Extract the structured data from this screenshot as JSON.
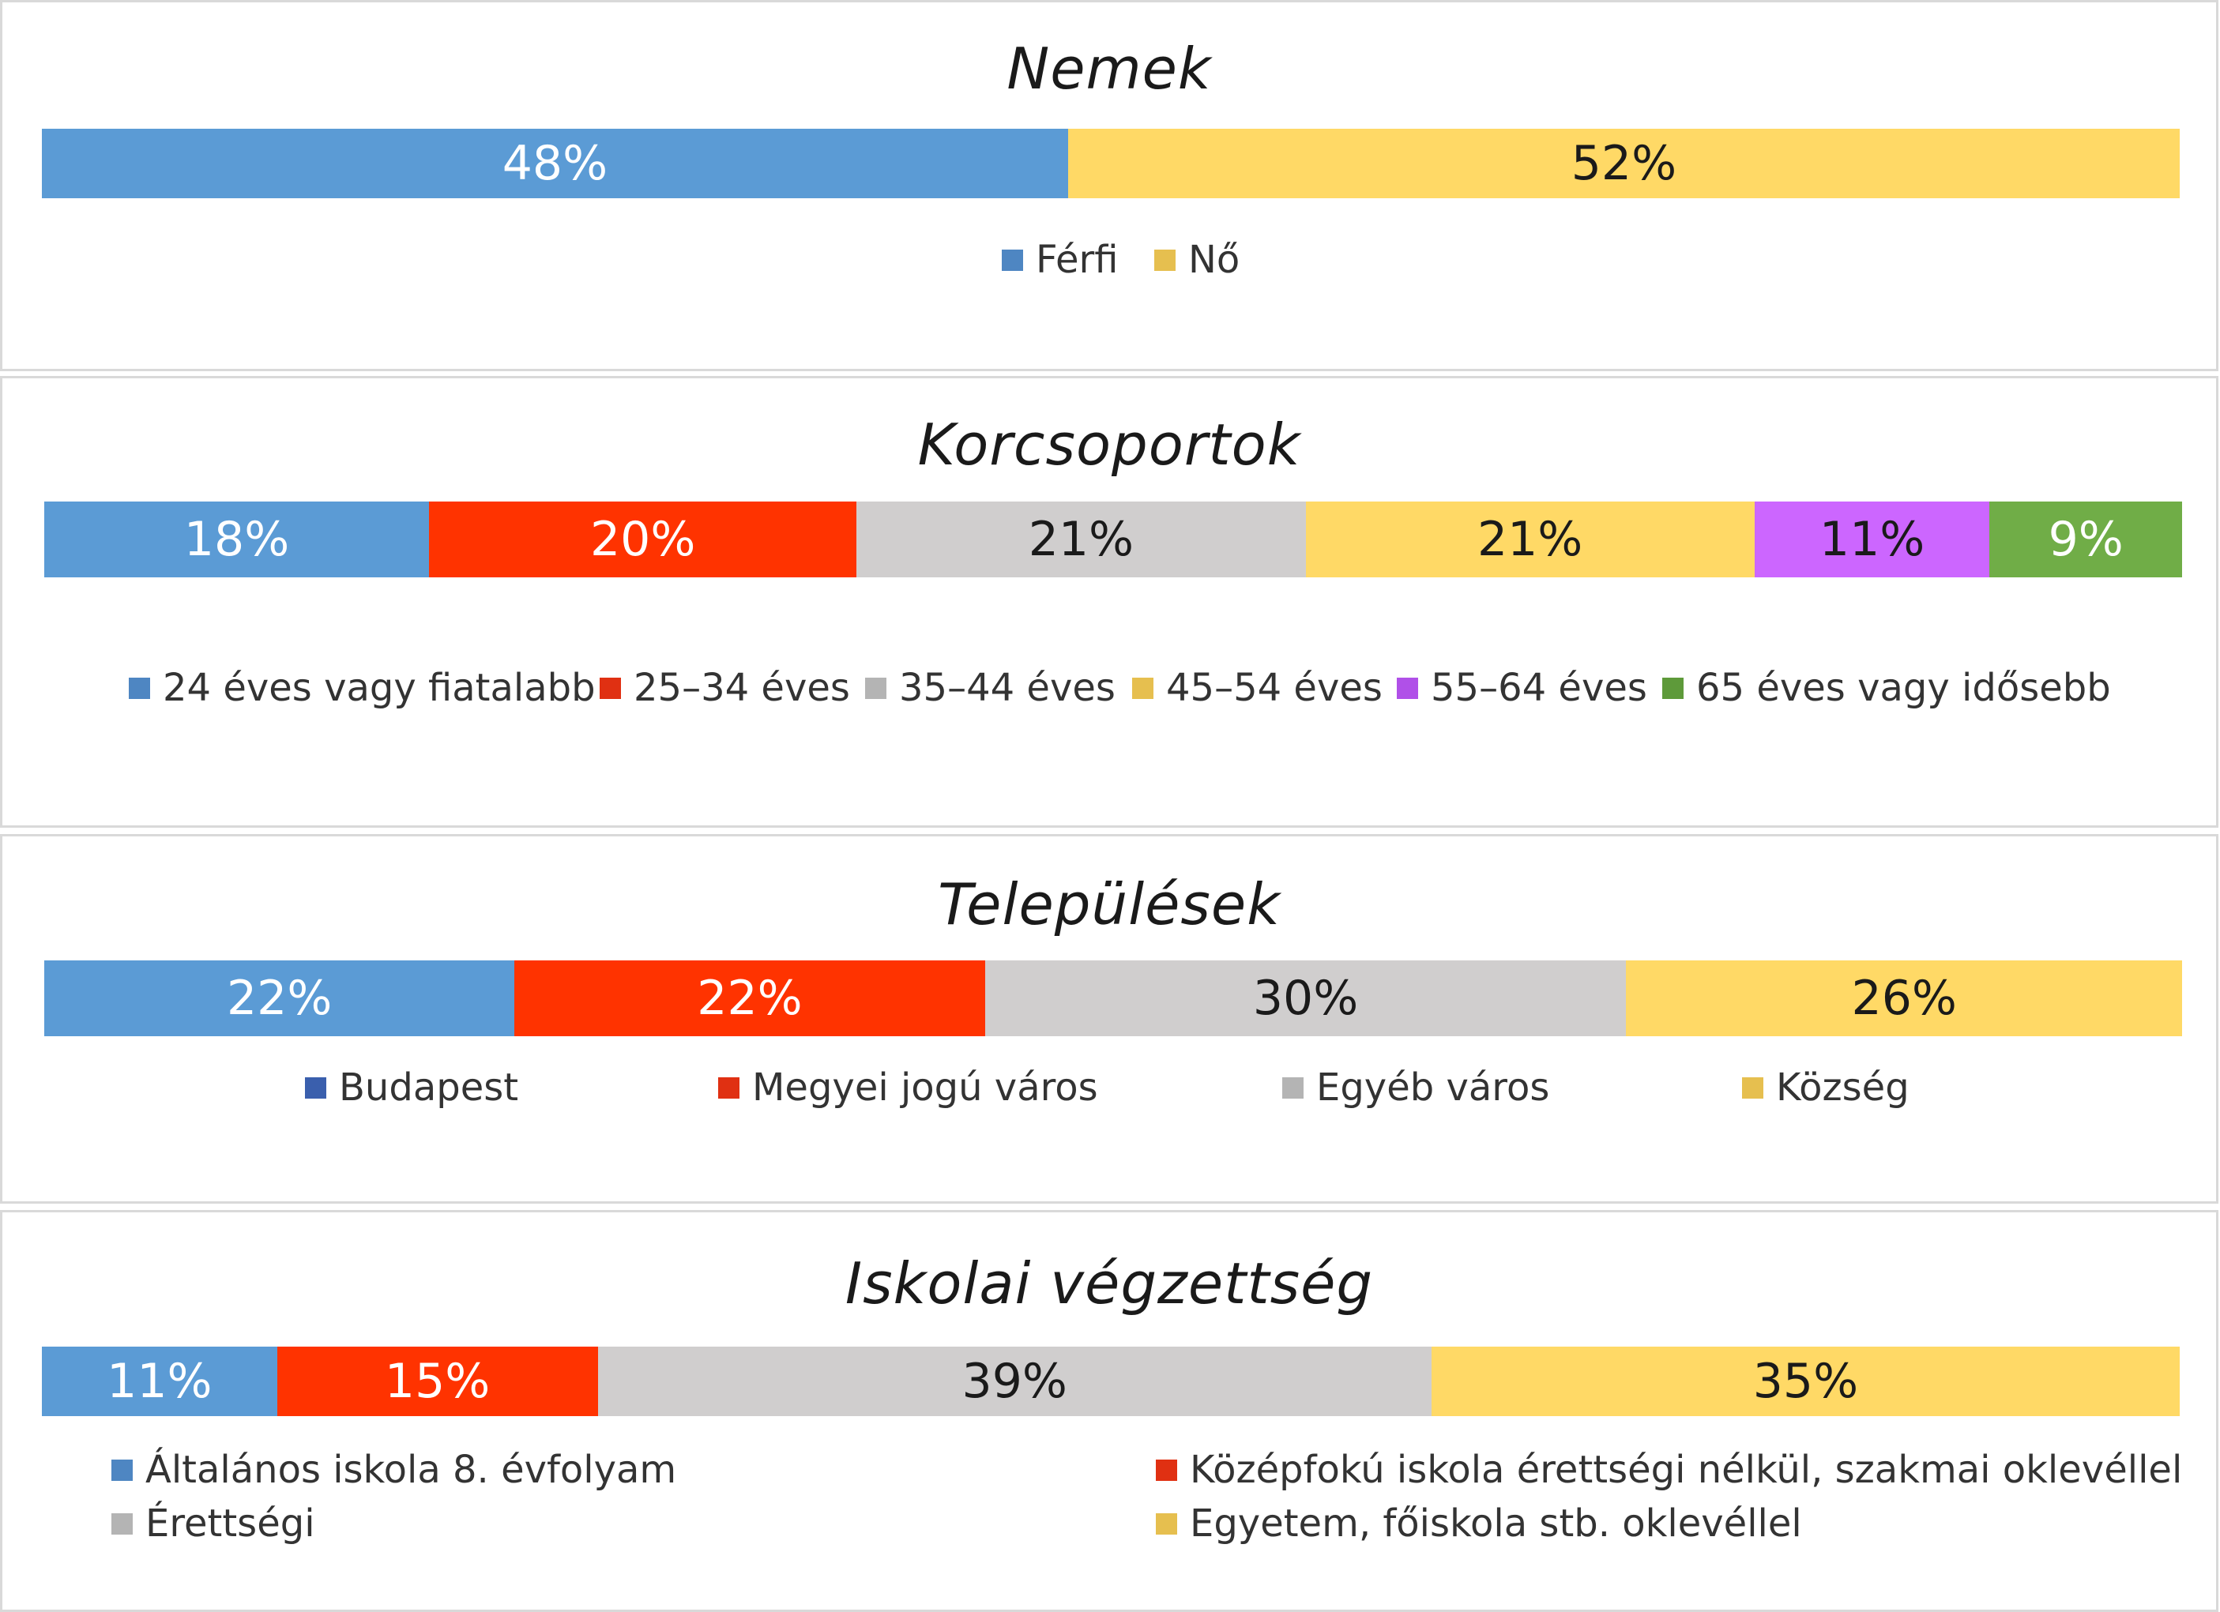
{
  "charts": [
    {
      "title": "Nemek",
      "segments": [
        {
          "label": "Férfi",
          "value": 48,
          "display": "48%",
          "color": "#5b9bd5",
          "swatch": "#4e86c2",
          "text_color": "#ffffff"
        },
        {
          "label": "Nő",
          "value": 52,
          "display": "52%",
          "color": "#ffd966",
          "swatch": "#e6bf4f",
          "text_color": "#1a1a1a"
        }
      ]
    },
    {
      "title": "Korcsoportok",
      "segments": [
        {
          "label": "24 éves vagy fiatalabb",
          "value": 18,
          "display": "18%",
          "color": "#5b9bd5",
          "swatch": "#4e86c2",
          "text_color": "#ffffff"
        },
        {
          "label": "25–34 éves",
          "value": 20,
          "display": "20%",
          "color": "#ff3300",
          "swatch": "#e03012",
          "text_color": "#ffffff"
        },
        {
          "label": "35–44 éves",
          "value": 21,
          "display": "21%",
          "color": "#d0cece",
          "swatch": "#b4b4b4",
          "text_color": "#1a1a1a"
        },
        {
          "label": "45–54 éves",
          "value": 21,
          "display": "21%",
          "color": "#ffd966",
          "swatch": "#e6bf4f",
          "text_color": "#1a1a1a"
        },
        {
          "label": "55–64 éves",
          "value": 11,
          "display": "11%",
          "color": "#cc66ff",
          "swatch": "#b050e8",
          "text_color": "#1a1a1a"
        },
        {
          "label": "65 éves vagy idősebb",
          "value": 9,
          "display": "9%",
          "color": "#70ad47",
          "swatch": "#5e9a3a",
          "text_color": "#ffffff"
        }
      ]
    },
    {
      "title": "Települések",
      "segments": [
        {
          "label": "Budapest",
          "value": 22,
          "display": "22%",
          "color": "#5b9bd5",
          "swatch": "#3a5fad",
          "text_color": "#ffffff"
        },
        {
          "label": "Megyei jogú város",
          "value": 22,
          "display": "22%",
          "color": "#ff3300",
          "swatch": "#e03012",
          "text_color": "#ffffff"
        },
        {
          "label": "Egyéb város",
          "value": 30,
          "display": "30%",
          "color": "#d0cece",
          "swatch": "#b4b4b4",
          "text_color": "#1a1a1a"
        },
        {
          "label": "Község",
          "value": 26,
          "display": "26%",
          "color": "#ffd966",
          "swatch": "#e6bf4f",
          "text_color": "#1a1a1a"
        }
      ]
    },
    {
      "title": "Iskolai végzettség",
      "segments": [
        {
          "label": "Általános iskola 8. évfolyam",
          "value": 11,
          "display": "11%",
          "color": "#5b9bd5",
          "swatch": "#4e86c2",
          "text_color": "#ffffff"
        },
        {
          "label": "Középfokú iskola érettségi nélkül, szakmai oklevéllel",
          "value": 15,
          "display": "15%",
          "color": "#ff3300",
          "swatch": "#e03012",
          "text_color": "#ffffff"
        },
        {
          "label": "Érettségi",
          "value": 39,
          "display": "39%",
          "color": "#d0cece",
          "swatch": "#b4b4b4",
          "text_color": "#1a1a1a"
        },
        {
          "label": "Egyetem, főiskola stb. oklevéllel",
          "value": 35,
          "display": "35%",
          "color": "#ffd966",
          "swatch": "#e6bf4f",
          "text_color": "#1a1a1a"
        }
      ]
    }
  ],
  "chart_data": [
    {
      "type": "bar",
      "orientation": "horizontal",
      "stacked": "100%",
      "title": "Nemek",
      "categories": [
        "Férfi",
        "Nő"
      ],
      "values": [
        48,
        52
      ],
      "unit": "%",
      "legend": "bottom"
    },
    {
      "type": "bar",
      "orientation": "horizontal",
      "stacked": "100%",
      "title": "Korcsoportok",
      "categories": [
        "24 éves vagy fiatalabb",
        "25–34 éves",
        "35–44 éves",
        "45–54 éves",
        "55–64 éves",
        "65 éves vagy idősebb"
      ],
      "values": [
        18,
        20,
        21,
        21,
        11,
        9
      ],
      "unit": "%",
      "legend": "bottom"
    },
    {
      "type": "bar",
      "orientation": "horizontal",
      "stacked": "100%",
      "title": "Települések",
      "categories": [
        "Budapest",
        "Megyei jogú város",
        "Egyéb város",
        "Község"
      ],
      "values": [
        22,
        22,
        30,
        26
      ],
      "unit": "%",
      "legend": "bottom"
    },
    {
      "type": "bar",
      "orientation": "horizontal",
      "stacked": "100%",
      "title": "Iskolai végzettség",
      "categories": [
        "Általános iskola 8. évfolyam",
        "Középfokú iskola érettségi nélkül, szakmai oklevéllel",
        "Érettségi",
        "Egyetem, főiskola stb. oklevéllel"
      ],
      "values": [
        11,
        15,
        39,
        35
      ],
      "unit": "%",
      "legend": "bottom"
    }
  ]
}
